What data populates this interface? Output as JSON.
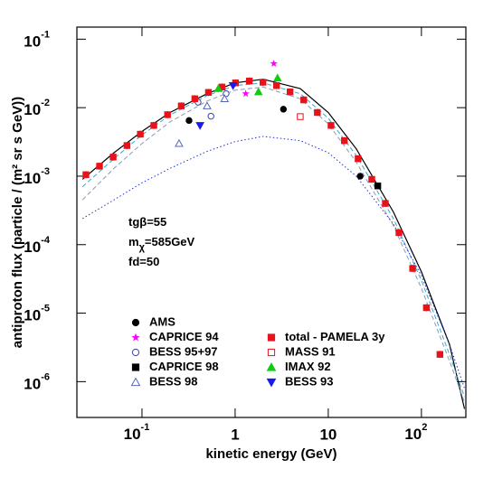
{
  "chart_data": {
    "type": "scatter",
    "log_x": true,
    "log_y": true,
    "x_label": "kinetic energy (GeV)",
    "y_label": "antiproton flux (particle / (m² sr s GeV))",
    "xlim": [
      0.02,
      300
    ],
    "ylim": [
      3e-07,
      0.15
    ],
    "xticks": [
      {
        "value": 0.1,
        "label": "10",
        "exponent": "-1"
      },
      1,
      10,
      {
        "value": 100,
        "label": "10",
        "exponent": "2"
      }
    ],
    "yticks": [
      {
        "value": 0.1,
        "label": "10",
        "exponent": "-1"
      },
      {
        "value": 0.01,
        "label": "10",
        "exponent": "-2"
      },
      {
        "value": 0.001,
        "label": "10",
        "exponent": "-3"
      },
      {
        "value": 0.0001,
        "label": "10",
        "exponent": "-4"
      },
      {
        "value": 1e-05,
        "label": "10",
        "exponent": "-5"
      },
      {
        "value": 1e-06,
        "label": "10",
        "exponent": "-6"
      }
    ],
    "annotations": [
      {
        "text": "tgβ=55"
      },
      {
        "text": "m",
        "sub": "χ",
        "rest": "=585GeV"
      },
      {
        "text": "fd=50"
      }
    ],
    "series": [
      {
        "name": "AMS",
        "marker": "circle",
        "color": "#000000",
        "x": [
          0.32,
          3.3,
          22
        ],
        "values": [
          0.0065,
          0.0095,
          0.001
        ]
      },
      {
        "name": "CAPRICE 94",
        "marker": "star",
        "color": "#ff00ff",
        "x": [
          1.3,
          2.6
        ],
        "values": [
          0.016,
          0.044
        ]
      },
      {
        "name": "BESS 95+97",
        "marker": "circle-open",
        "color": "#3344aa",
        "x": [
          0.4,
          0.55,
          0.8
        ],
        "values": [
          0.012,
          0.0075,
          0.016
        ]
      },
      {
        "name": "CAPRICE 98",
        "marker": "square",
        "color": "#000000",
        "x": [
          34
        ],
        "values": [
          0.00072
        ]
      },
      {
        "name": "BESS 98",
        "marker": "triangle-open",
        "color": "#5566bb",
        "x": [
          0.25,
          0.5,
          0.77
        ],
        "values": [
          0.003,
          0.0106,
          0.0135
        ]
      },
      {
        "name": "total - PAMELA 3y",
        "marker": "square",
        "color": "#e8121a",
        "x": [
          0.025,
          0.035,
          0.049,
          0.069,
          0.096,
          0.134,
          0.188,
          0.264,
          0.369,
          0.517,
          0.723,
          1.01,
          1.42,
          1.99,
          2.78,
          3.89,
          5.45,
          7.63,
          10.7,
          14.9,
          20.9,
          29.3,
          41.0,
          57.4,
          80.4,
          113,
          158
        ],
        "values": [
          0.00105,
          0.0014,
          0.0019,
          0.0028,
          0.0041,
          0.0055,
          0.0079,
          0.0106,
          0.0135,
          0.0167,
          0.02,
          0.023,
          0.0245,
          0.0235,
          0.021,
          0.017,
          0.013,
          0.0085,
          0.0055,
          0.0033,
          0.0018,
          0.0009,
          0.0004,
          0.00015,
          4.5e-05,
          1.2e-05,
          2.5e-06
        ]
      },
      {
        "name": "MASS 91",
        "marker": "square-open",
        "color": "#e8121a",
        "x": [
          5
        ],
        "values": [
          0.0074
        ]
      },
      {
        "name": "IMAX 92",
        "marker": "triangle",
        "color": "#11cc11",
        "x": [
          0.66,
          1.78,
          2.85
        ],
        "values": [
          0.019,
          0.017,
          0.027
        ]
      },
      {
        "name": "BESS 93",
        "marker": "triangle-down",
        "color": "#1a1aee",
        "x": [
          0.42,
          0.95
        ],
        "values": [
          0.0055,
          0.021
        ]
      }
    ],
    "curves": [
      {
        "style": "solid",
        "color": "#000000",
        "x": [
          0.023,
          0.05,
          0.1,
          0.2,
          0.5,
          1,
          2,
          5,
          10,
          20,
          50,
          100,
          200,
          290
        ],
        "values": [
          0.0009,
          0.0022,
          0.0045,
          0.0085,
          0.016,
          0.023,
          0.026,
          0.019,
          0.0085,
          0.0025,
          0.0003,
          4e-05,
          3.5e-06,
          4e-07
        ]
      },
      {
        "style": "dashed",
        "color": "#33aacc",
        "x": [
          0.023,
          0.05,
          0.1,
          0.2,
          0.5,
          1,
          2,
          5,
          10,
          20,
          50,
          100,
          200,
          290
        ],
        "values": [
          0.0007,
          0.0018,
          0.004,
          0.0078,
          0.015,
          0.021,
          0.023,
          0.016,
          0.007,
          0.002,
          0.00024,
          3e-05,
          2.5e-06,
          6e-07
        ]
      },
      {
        "style": "dashed",
        "color": "#8899bb",
        "x": [
          0.023,
          0.05,
          0.1,
          0.2,
          0.5,
          1,
          2,
          5,
          10,
          20,
          50,
          100,
          200,
          290
        ],
        "values": [
          0.00045,
          0.0013,
          0.003,
          0.0062,
          0.0125,
          0.018,
          0.02,
          0.0135,
          0.0058,
          0.0016,
          0.00019,
          2.3e-05,
          2e-06,
          5e-07
        ]
      },
      {
        "style": "dotted",
        "color": "#2233cc",
        "x": [
          0.023,
          0.05,
          0.1,
          0.2,
          0.5,
          1,
          2,
          5,
          10,
          20,
          50,
          100,
          200,
          290
        ],
        "values": [
          0.00024,
          0.00045,
          0.0008,
          0.0013,
          0.0023,
          0.0032,
          0.0038,
          0.0033,
          0.0022,
          0.001,
          0.0002,
          3.5e-05,
          3.5e-06,
          8e-07
        ]
      }
    ]
  }
}
